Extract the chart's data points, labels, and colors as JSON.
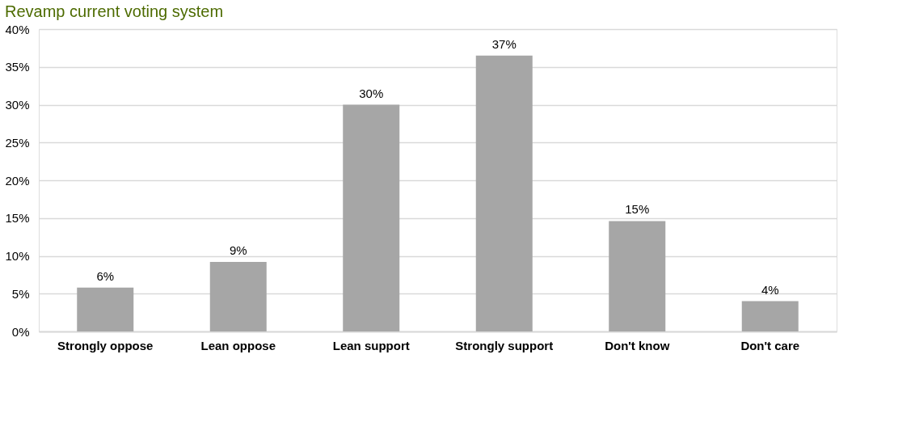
{
  "chart_data": {
    "type": "bar",
    "title": "Revamp current voting system",
    "categories": [
      "Strongly oppose",
      "Lean oppose",
      "Lean support",
      "Strongly support",
      "Don't know",
      "Don't care"
    ],
    "values": [
      5.8,
      9.2,
      30,
      36.5,
      14.6,
      4.0
    ],
    "value_labels": [
      "6%",
      "9%",
      "30%",
      "37%",
      "15%",
      "4%"
    ],
    "color": "#a6a6a6",
    "ylim": [
      0,
      40
    ],
    "yticks": [
      {
        "value": 0,
        "label": "0%"
      },
      {
        "value": 5,
        "label": "5%"
      },
      {
        "value": 10,
        "label": "10%"
      },
      {
        "value": 15,
        "label": "15%"
      },
      {
        "value": 20,
        "label": "20%"
      },
      {
        "value": 25,
        "label": "25%"
      },
      {
        "value": 30,
        "label": "30%"
      },
      {
        "value": 35,
        "label": "35%"
      },
      {
        "value": 40,
        "label": "40%"
      }
    ],
    "grid": "y"
  }
}
